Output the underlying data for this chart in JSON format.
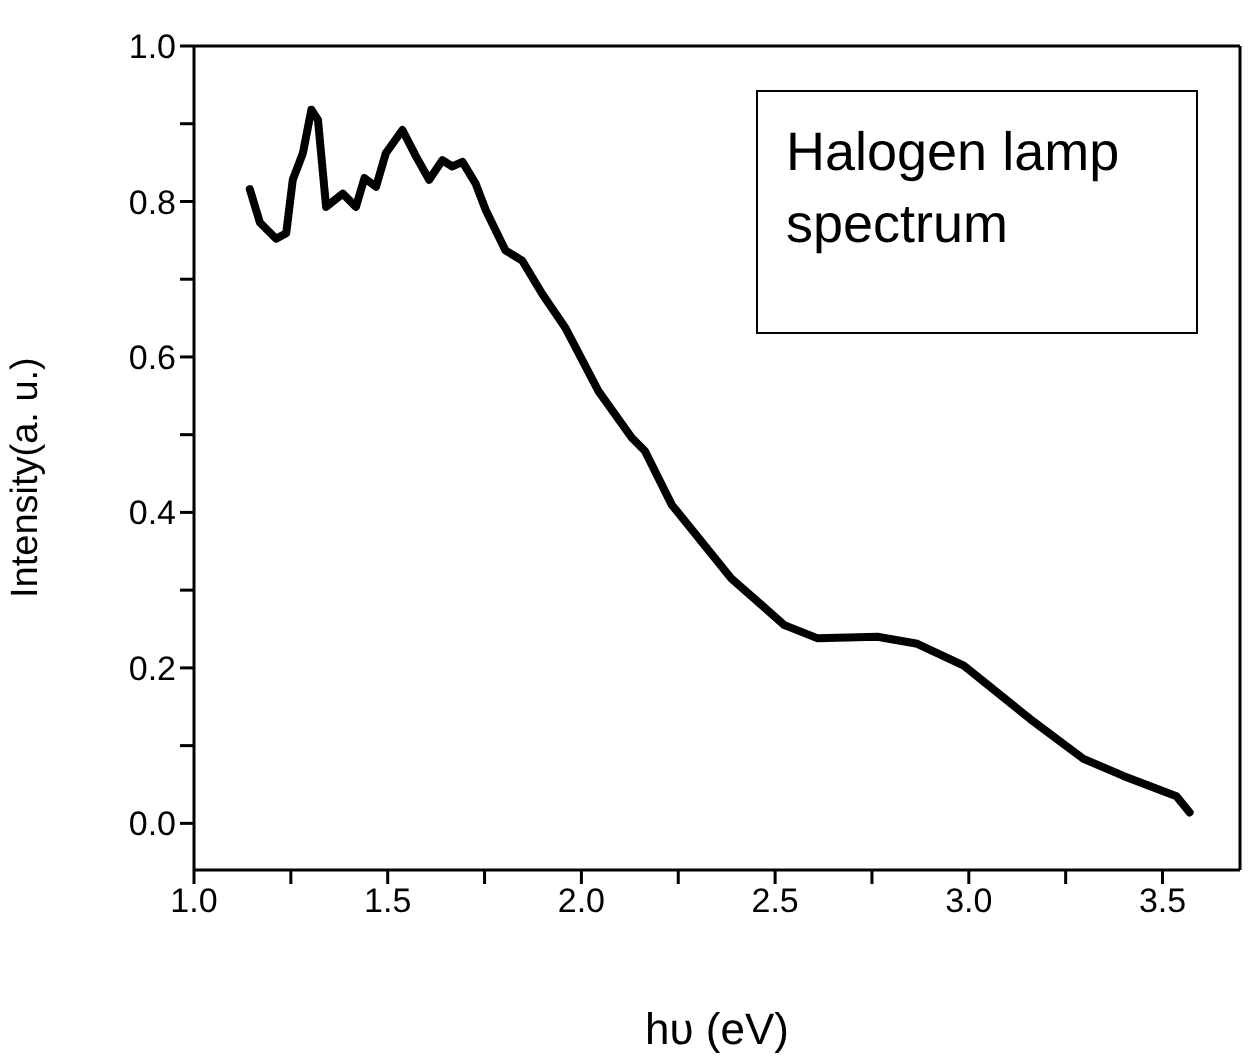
{
  "chart_data": {
    "type": "line",
    "xlabel": "hυ (eV)",
    "ylabel": "Intensity(a. u.)",
    "annotations": [
      "Halogen lamp spectrum"
    ],
    "x": [
      1.144,
      1.17,
      1.212,
      1.238,
      1.255,
      1.281,
      1.303,
      1.32,
      1.341,
      1.384,
      1.418,
      1.44,
      1.47,
      1.495,
      1.538,
      1.573,
      1.607,
      1.641,
      1.667,
      1.693,
      1.727,
      1.753,
      1.804,
      1.847,
      1.899,
      1.958,
      2.044,
      2.13,
      2.164,
      2.233,
      2.387,
      2.524,
      2.61,
      2.764,
      2.867,
      2.987,
      3.159,
      3.296,
      3.399,
      3.536,
      3.57
    ],
    "series": [
      {
        "color": "#000000",
        "values": [
          0.816,
          0.773,
          0.752,
          0.759,
          0.828,
          0.862,
          0.918,
          0.905,
          0.793,
          0.81,
          0.793,
          0.83,
          0.819,
          0.862,
          0.892,
          0.858,
          0.828,
          0.853,
          0.845,
          0.851,
          0.823,
          0.789,
          0.737,
          0.724,
          0.681,
          0.638,
          0.556,
          0.496,
          0.479,
          0.41,
          0.315,
          0.255,
          0.238,
          0.24,
          0.231,
          0.203,
          0.134,
          0.083,
          0.061,
          0.035,
          0.014
        ]
      }
    ],
    "xlim": [
      1.0,
      3.7
    ],
    "xticks": [
      {
        "value": 1.0,
        "label": "1.0"
      },
      {
        "value": 1.25,
        "label": null
      },
      {
        "value": 1.5,
        "label": "1.5"
      },
      {
        "value": 1.75,
        "label": null
      },
      {
        "value": 2.0,
        "label": "2.0"
      },
      {
        "value": 2.25,
        "label": null
      },
      {
        "value": 2.5,
        "label": "2.5"
      },
      {
        "value": 2.75,
        "label": null
      },
      {
        "value": 3.0,
        "label": "3.0"
      },
      {
        "value": 3.25,
        "label": null
      },
      {
        "value": 3.5,
        "label": "3.5"
      }
    ],
    "ylim": [
      -0.06,
      1.0
    ],
    "yticks": [
      {
        "value": 0.0,
        "label": "0.0"
      },
      {
        "value": 0.1,
        "label": null
      },
      {
        "value": 0.2,
        "label": "0.2"
      },
      {
        "value": 0.3,
        "label": null
      },
      {
        "value": 0.4,
        "label": "0.4"
      },
      {
        "value": 0.5,
        "label": null
      },
      {
        "value": 0.6,
        "label": "0.6"
      },
      {
        "value": 0.7,
        "label": null
      },
      {
        "value": 0.8,
        "label": "0.8"
      },
      {
        "value": 0.9,
        "label": null
      },
      {
        "value": 1.0,
        "label": "1.0"
      }
    ],
    "grid": false,
    "legend": false,
    "marker": "none",
    "line_style": "solid"
  }
}
